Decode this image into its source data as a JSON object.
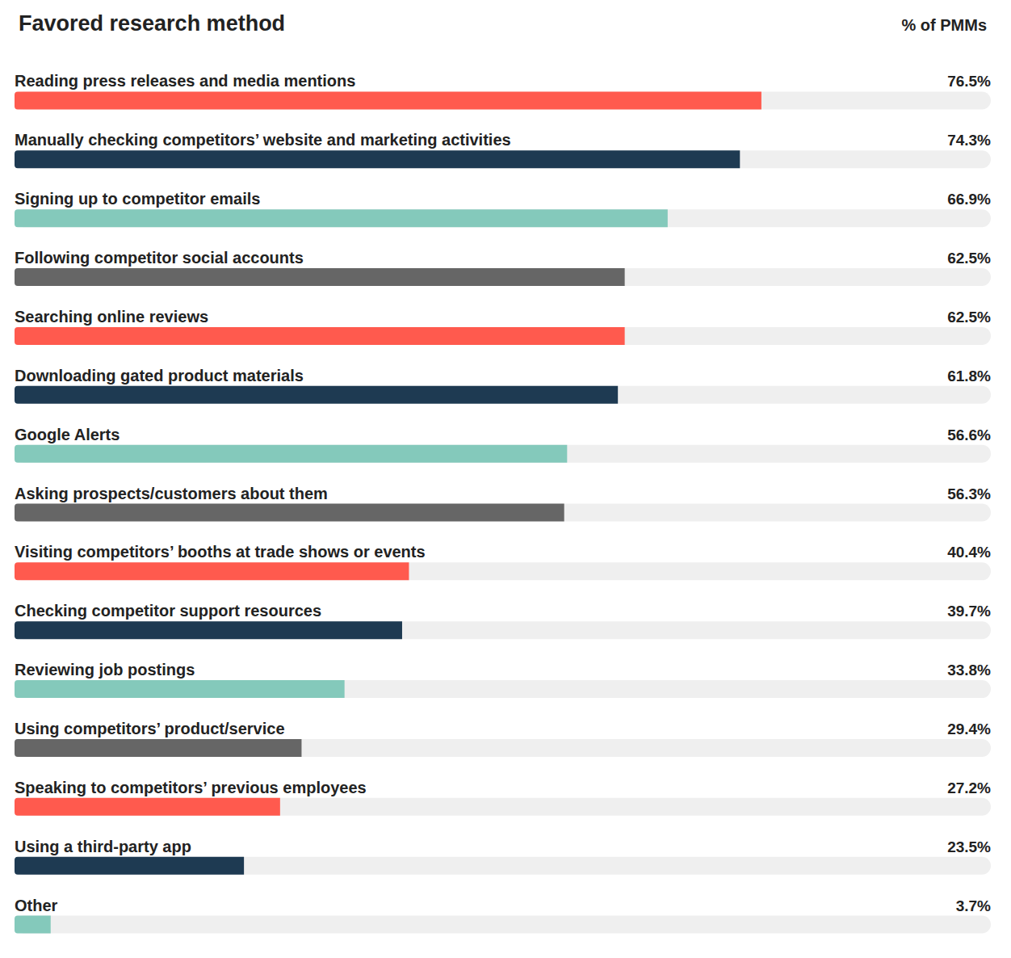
{
  "chart_data": {
    "type": "bar",
    "title": "Favored research method",
    "x_label": "% of PMMs",
    "orientation": "horizontal",
    "categories": [
      "Reading press releases and media mentions",
      "Manually checking competitors’ website and marketing activities",
      "Signing up to competitor emails",
      "Following competitor social accounts",
      "Searching online reviews",
      "Downloading gated product materials",
      "Google Alerts",
      "Asking prospects/customers about them",
      "Visiting competitors’ booths at trade shows or events",
      "Checking competitor support resources",
      "Reviewing job postings",
      "Using competitors’ product/service",
      "Speaking to competitors’ previous employees",
      "Using a third-party app",
      "Other"
    ],
    "values": [
      76.5,
      74.3,
      66.9,
      62.5,
      62.5,
      61.8,
      56.6,
      56.3,
      40.4,
      39.7,
      33.8,
      29.4,
      27.2,
      23.5,
      3.7
    ],
    "value_labels": [
      "76.5%",
      "74.3%",
      "66.9%",
      "62.5%",
      "62.5%",
      "61.8%",
      "56.6%",
      "56.3%",
      "40.4%",
      "39.7%",
      "33.8%",
      "29.4%",
      "27.2%",
      "23.5%",
      "3.7%"
    ],
    "colors": [
      "#FF5A4E",
      "#1E3A52",
      "#84C9BB",
      "#666666",
      "#FF5A4E",
      "#1E3A52",
      "#84C9BB",
      "#666666",
      "#FF5A4E",
      "#1E3A52",
      "#84C9BB",
      "#666666",
      "#FF5A4E",
      "#1E3A52",
      "#84C9BB"
    ],
    "xlim": [
      0,
      100
    ],
    "grid": false,
    "data_labels": true,
    "tick_labels": false
  }
}
